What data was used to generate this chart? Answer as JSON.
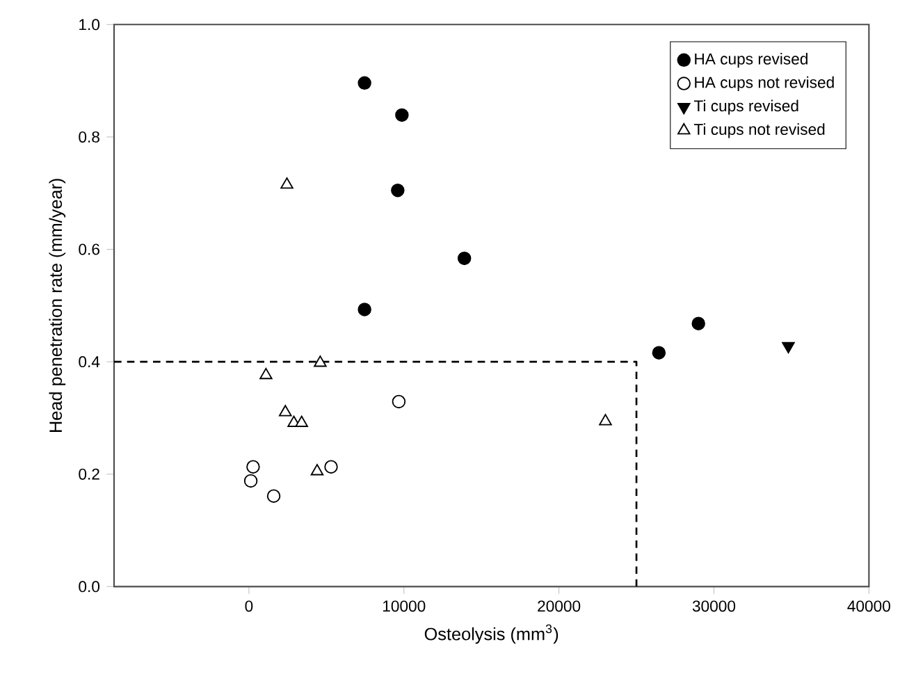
{
  "chart_data": {
    "type": "scatter",
    "xlabel": "Osteolysis (mm$^{3}$)",
    "ylabel": "Head penetration rate (mm/year)",
    "xlim": [
      -8700,
      40000
    ],
    "xticks": [
      0,
      10000,
      20000,
      30000,
      40000
    ],
    "ylim": [
      0,
      1
    ],
    "yticks": [
      {
        "value": 0,
        "label": "0.0"
      },
      {
        "value": 0.2,
        "label": "0.2"
      },
      {
        "value": 0.4,
        "label": "0.4"
      },
      {
        "value": 0.6,
        "label": "0.6"
      },
      {
        "value": 0.8,
        "label": "0.8"
      },
      {
        "value": 1,
        "label": "1.0"
      }
    ],
    "legend": "top right",
    "grid": false,
    "series": [
      {
        "name": "HA cups revised",
        "color": "#000000",
        "marker": "circle",
        "x": [
          7460,
          9870,
          9600,
          13900,
          7460,
          26450,
          29000
        ],
        "values": [
          0.896,
          0.839,
          0.705,
          0.584,
          0.493,
          0.416,
          0.468
        ]
      },
      {
        "name": "HA cups not revised",
        "color": "#000000",
        "marker": "circle open",
        "x": [
          9670,
          270,
          120,
          1600,
          5300
        ],
        "values": [
          0.329,
          0.213,
          0.188,
          0.161,
          0.213
        ]
      },
      {
        "name": "Ti cups revised",
        "color": "#000000",
        "marker": "triangle down",
        "x": [
          34800
        ],
        "values": [
          0.428
        ]
      },
      {
        "name": "Ti cups not revised",
        "color": "#000000",
        "marker": "triangle open",
        "x": [
          2450,
          1100,
          4600,
          2350,
          2900,
          3400,
          4400,
          23000
        ],
        "values": [
          0.715,
          0.376,
          0.398,
          0.31,
          0.291,
          0.291,
          0.205,
          0.294
        ]
      },
      {
        "type": "line",
        "color": "#000000",
        "line_style": "dashed",
        "marker": "none",
        "x": [
          -8700,
          25000,
          25000
        ],
        "values": [
          0.4,
          0.4,
          0
        ]
      }
    ]
  }
}
